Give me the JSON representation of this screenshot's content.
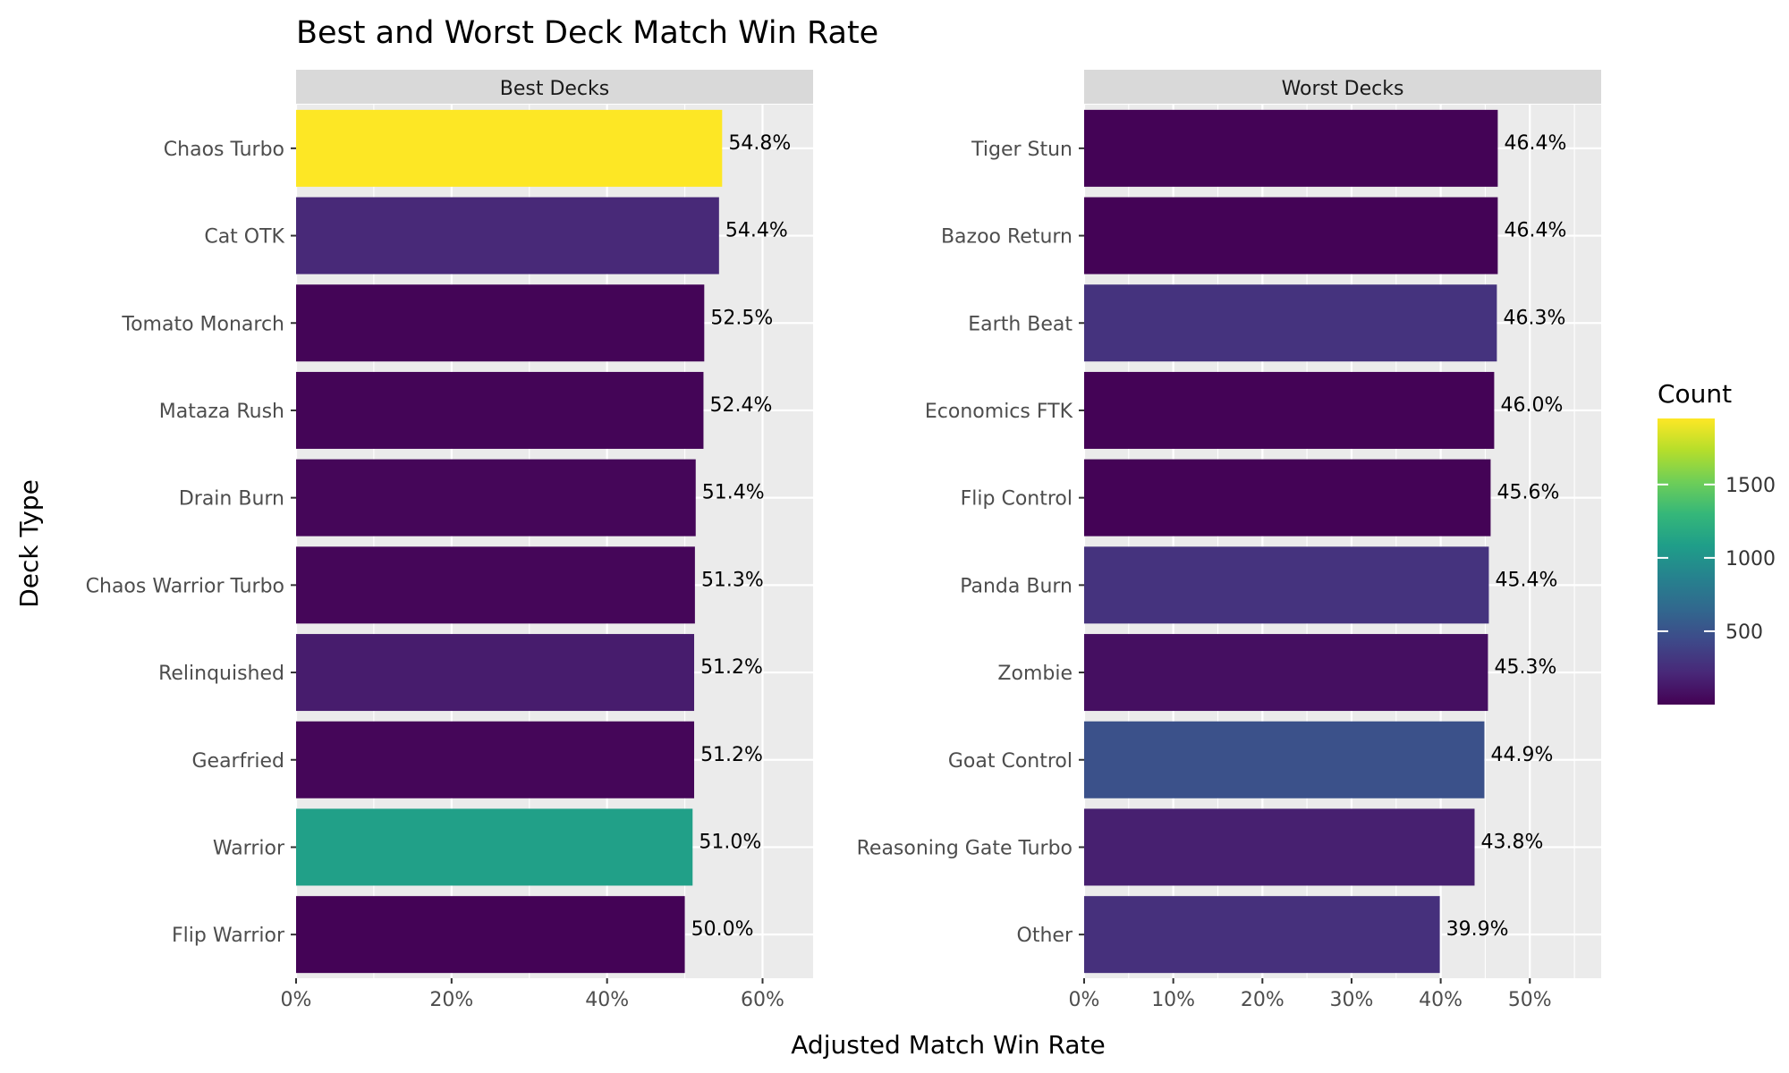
{
  "chart_data": {
    "type": "bar",
    "orientation": "horizontal",
    "title": "Best and Worst Deck Match Win Rate",
    "xlabel": "Adjusted Match Win Rate",
    "ylabel": "Deck Type",
    "grid": true,
    "legend": {
      "title": "Count",
      "placement": "right",
      "colormap": "viridis",
      "range": [
        0,
        1950
      ],
      "ticks": [
        500,
        1000,
        1500
      ],
      "tick_labels": [
        "500",
        "1000",
        "1500"
      ]
    },
    "panels": [
      {
        "strip": "Best Decks",
        "xlim": [
          0,
          0.665
        ],
        "xticks": [
          0,
          0.2,
          0.4,
          0.6
        ],
        "xtick_labels": [
          "0%",
          "20%",
          "40%",
          "60%"
        ],
        "categories": [
          "Chaos Turbo",
          "Cat OTK",
          "Tomato Monarch",
          "Mataza Rush",
          "Drain Burn",
          "Chaos Warrior Turbo",
          "Relinquished",
          "Gearfried",
          "Warrior",
          "Flip Warrior"
        ],
        "values": [
          0.548,
          0.544,
          0.525,
          0.524,
          0.514,
          0.513,
          0.512,
          0.512,
          0.51,
          0.5
        ],
        "labels": [
          "54.8%",
          "54.4%",
          "52.5%",
          "52.4%",
          "51.4%",
          "51.3%",
          "51.2%",
          "51.2%",
          "51.0%",
          "50.0%"
        ],
        "counts": [
          1950,
          220,
          20,
          20,
          30,
          30,
          150,
          30,
          1100,
          10
        ]
      },
      {
        "strip": "Worst Decks",
        "xlim": [
          0,
          0.58
        ],
        "xticks": [
          0,
          0.1,
          0.2,
          0.3,
          0.4,
          0.5
        ],
        "xtick_labels": [
          "0%",
          "10%",
          "20%",
          "30%",
          "40%",
          "50%"
        ],
        "categories": [
          "Tiger Stun",
          "Bazoo Return",
          "Earth Beat",
          "Economics FTK",
          "Flip Control",
          "Panda Burn",
          "Zombie",
          "Goat Control",
          "Reasoning Gate Turbo",
          "Other"
        ],
        "values": [
          0.464,
          0.464,
          0.463,
          0.46,
          0.456,
          0.454,
          0.453,
          0.449,
          0.438,
          0.399
        ],
        "labels": [
          "46.4%",
          "46.4%",
          "46.3%",
          "46.0%",
          "45.6%",
          "45.4%",
          "45.3%",
          "44.9%",
          "43.8%",
          "39.9%"
        ],
        "counts": [
          10,
          10,
          290,
          10,
          10,
          290,
          80,
          490,
          170,
          270
        ]
      }
    ]
  }
}
